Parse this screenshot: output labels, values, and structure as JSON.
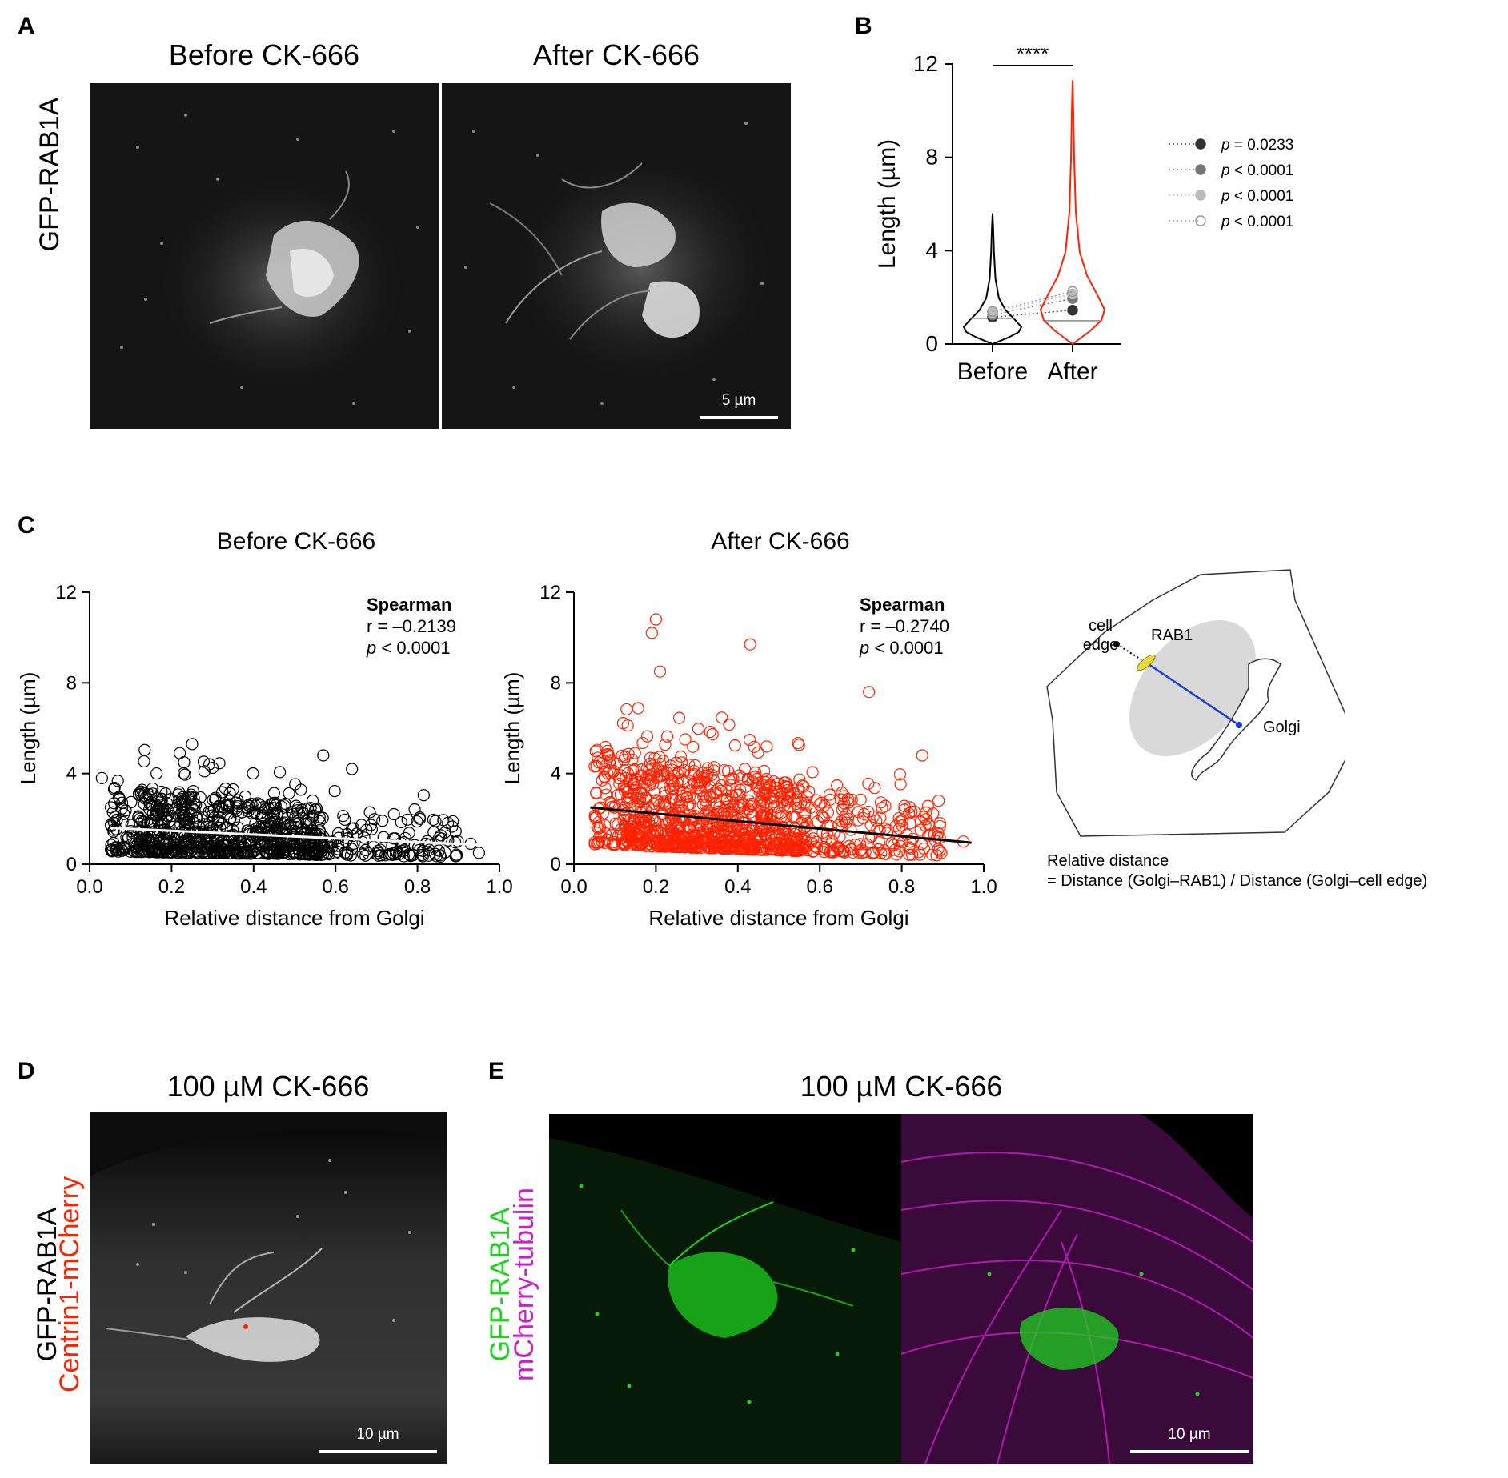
{
  "panel_letters": {
    "a": "A",
    "b": "B",
    "c": "C",
    "d": "D",
    "e": "E"
  },
  "panel_a": {
    "titles": [
      "Before CK-666",
      "After CK-666"
    ],
    "ylabel": "GFP-RAB1A",
    "scale_bar": "5 µm"
  },
  "panel_c": {
    "titles": [
      "Before CK-666",
      "After CK-666"
    ],
    "stats": [
      {
        "method": "Spearman",
        "r": "r = –0.2139",
        "p_italic": "p",
        "p_rest": " < 0.0001"
      },
      {
        "method": "Spearman",
        "r": "r = –0.2740",
        "p_italic": "p",
        "p_rest": " < 0.0001"
      }
    ],
    "diagram": {
      "cell_edge": "cell\nedge",
      "cell_label_1": "cell",
      "cell_label_2": "edge",
      "rab1": "RAB1",
      "golgi": "Golgi",
      "formula_1": "Relative distance",
      "formula_2": "= Distance (Golgi–RAB1) / Distance (Golgi–cell edge)"
    }
  },
  "panel_d": {
    "title": "100 µM CK-666",
    "ylabel_1": "GFP-RAB1A",
    "ylabel_2": "Centrin1-mCherry",
    "scale_bar": "10 µm"
  },
  "panel_e": {
    "title": "100 µM CK-666",
    "ylabel_1": "GFP-RAB1A",
    "ylabel_2": "mCherry-tubulin",
    "scale_bar": "10 µm"
  },
  "colors": {
    "black": "#000000",
    "red": "#ff2200",
    "green": "#1fd01f",
    "magenta": "#cc1fcc",
    "blue": "#1a3fd6",
    "yellow": "#e8d93a"
  },
  "chart_data": [
    {
      "type": "violin",
      "id": "B",
      "categories": [
        "Before",
        "After"
      ],
      "ylabel": "Length (µm)",
      "ylim": [
        0,
        12
      ],
      "yticks": [
        0,
        4,
        8,
        12
      ],
      "significance": "****",
      "replicate_means": [
        {
          "before": 1.15,
          "after": 1.45,
          "p": "= 0.0233",
          "style": "dark"
        },
        {
          "before": 1.25,
          "after": 1.95,
          "p": "< 0.0001",
          "style": "mid"
        },
        {
          "before": 1.35,
          "after": 2.15,
          "p": "< 0.0001",
          "style": "light"
        },
        {
          "before": 1.4,
          "after": 2.25,
          "p": "< 0.0001",
          "style": "open"
        }
      ],
      "legend_p_label": "p",
      "violin_max": {
        "before": 5.6,
        "after": 11.3
      },
      "median": {
        "before": 1.1,
        "after": 1.0
      }
    },
    {
      "type": "scatter",
      "id": "C-before",
      "title": "Before CK-666",
      "xlabel": "Relative distance from Golgi",
      "ylabel": "Length (µm)",
      "xlim": [
        0,
        1.0
      ],
      "ylim": [
        0,
        12
      ],
      "xticks": [
        0.0,
        0.2,
        0.4,
        0.6,
        0.8,
        1.0
      ],
      "yticks": [
        0,
        4,
        8,
        12
      ],
      "fit_line": [
        [
          0.05,
          1.6
        ],
        [
          0.95,
          0.85
        ]
      ],
      "n_points_approx": 900,
      "points_sample": [
        [
          0.03,
          3.8
        ],
        [
          0.25,
          5.3
        ],
        [
          0.22,
          4.9
        ],
        [
          0.57,
          4.8
        ],
        [
          0.64,
          4.2
        ],
        [
          0.28,
          4.1
        ],
        [
          0.35,
          3.3
        ],
        [
          0.93,
          0.9
        ],
        [
          0.95,
          0.5
        ]
      ]
    },
    {
      "type": "scatter",
      "id": "C-after",
      "title": "After CK-666",
      "xlabel": "Relative distance from Golgi",
      "ylabel": "Length (µm)",
      "xlim": [
        0,
        1.0
      ],
      "ylim": [
        0,
        12
      ],
      "xticks": [
        0.0,
        0.2,
        0.4,
        0.6,
        0.8,
        1.0
      ],
      "yticks": [
        0,
        4,
        8,
        12
      ],
      "fit_line": [
        [
          0.04,
          2.5
        ],
        [
          0.97,
          0.95
        ]
      ],
      "n_points_approx": 1100,
      "points_sample": [
        [
          0.2,
          10.8
        ],
        [
          0.19,
          10.2
        ],
        [
          0.21,
          8.5
        ],
        [
          0.43,
          9.7
        ],
        [
          0.72,
          7.6
        ],
        [
          0.85,
          4.8
        ],
        [
          0.89,
          2.8
        ],
        [
          0.95,
          1.0
        ]
      ]
    }
  ]
}
